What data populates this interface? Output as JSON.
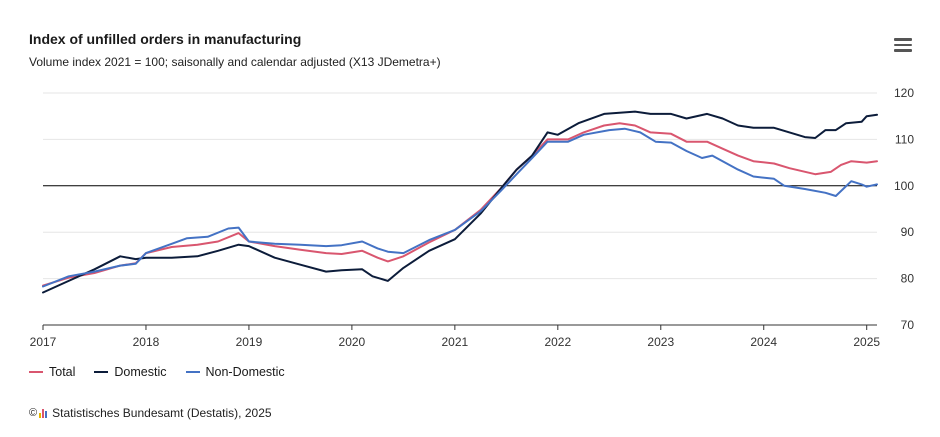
{
  "chart_title": "Index of unfilled orders in manufacturing",
  "chart_subtitle": "Volume index 2021 = 100; saisonally and calendar adjusted (X13 JDemetra+)",
  "credits": "Statistisches Bundesamt (Destatis), 2025",
  "credits_symbol": "©",
  "menu_icon": "hamburger-menu-icon",
  "colors": {
    "total": "#d9566f",
    "domestic": "#0c1c3a",
    "non_domestic": "#4472c4",
    "grid": "#e6e6e6",
    "reference": "#000000",
    "logo": [
      "#e6b800",
      "#d9566f",
      "#4472c4"
    ]
  },
  "chart_data": {
    "type": "line",
    "title": "Index of unfilled orders in manufacturing",
    "ylabel": "Volume index 2021 = 100",
    "ylim": [
      70,
      120
    ],
    "y_ticks": [
      70,
      80,
      90,
      100,
      110,
      120
    ],
    "x_range": [
      2017,
      2025.1
    ],
    "x_ticks": [
      "2017",
      "2018",
      "2019",
      "2020",
      "2021",
      "2022",
      "2023",
      "2024",
      "2025"
    ],
    "reference_line": 100,
    "legend_position": "bottom-left",
    "series": [
      {
        "name": "Total",
        "key": "total",
        "points": [
          [
            2017.0,
            78.5
          ],
          [
            2017.25,
            80.2
          ],
          [
            2017.5,
            81.2
          ],
          [
            2017.75,
            82.8
          ],
          [
            2017.9,
            83.3
          ],
          [
            2018.0,
            85.5
          ],
          [
            2018.25,
            86.8
          ],
          [
            2018.5,
            87.3
          ],
          [
            2018.7,
            88.0
          ],
          [
            2018.9,
            89.8
          ],
          [
            2019.0,
            88.0
          ],
          [
            2019.25,
            87.0
          ],
          [
            2019.5,
            86.2
          ],
          [
            2019.75,
            85.5
          ],
          [
            2019.9,
            85.3
          ],
          [
            2020.1,
            86.0
          ],
          [
            2020.25,
            84.5
          ],
          [
            2020.35,
            83.7
          ],
          [
            2020.5,
            84.8
          ],
          [
            2020.75,
            87.8
          ],
          [
            2021.0,
            90.5
          ],
          [
            2021.25,
            94.8
          ],
          [
            2021.45,
            99.5
          ],
          [
            2021.6,
            103.5
          ],
          [
            2021.75,
            106.5
          ],
          [
            2021.9,
            110.0
          ],
          [
            2022.1,
            110.0
          ],
          [
            2022.25,
            111.5
          ],
          [
            2022.45,
            113.0
          ],
          [
            2022.6,
            113.5
          ],
          [
            2022.75,
            113.0
          ],
          [
            2022.9,
            111.5
          ],
          [
            2023.1,
            111.2
          ],
          [
            2023.25,
            109.5
          ],
          [
            2023.45,
            109.5
          ],
          [
            2023.6,
            108.0
          ],
          [
            2023.75,
            106.5
          ],
          [
            2023.9,
            105.3
          ],
          [
            2024.1,
            104.8
          ],
          [
            2024.25,
            103.8
          ],
          [
            2024.5,
            102.5
          ],
          [
            2024.65,
            103.0
          ],
          [
            2024.75,
            104.5
          ],
          [
            2024.85,
            105.3
          ],
          [
            2025.0,
            105.0
          ],
          [
            2025.1,
            105.3
          ]
        ]
      },
      {
        "name": "Domestic",
        "key": "domestic",
        "points": [
          [
            2017.0,
            77.0
          ],
          [
            2017.25,
            79.5
          ],
          [
            2017.5,
            82.0
          ],
          [
            2017.75,
            84.8
          ],
          [
            2017.9,
            84.2
          ],
          [
            2018.0,
            84.5
          ],
          [
            2018.25,
            84.5
          ],
          [
            2018.5,
            84.8
          ],
          [
            2018.7,
            86.0
          ],
          [
            2018.9,
            87.3
          ],
          [
            2019.0,
            87.0
          ],
          [
            2019.25,
            84.5
          ],
          [
            2019.5,
            83.0
          ],
          [
            2019.75,
            81.5
          ],
          [
            2019.9,
            81.8
          ],
          [
            2020.1,
            82.0
          ],
          [
            2020.2,
            80.5
          ],
          [
            2020.35,
            79.5
          ],
          [
            2020.5,
            82.3
          ],
          [
            2020.75,
            86.0
          ],
          [
            2021.0,
            88.5
          ],
          [
            2021.25,
            94.0
          ],
          [
            2021.45,
            99.5
          ],
          [
            2021.6,
            103.5
          ],
          [
            2021.75,
            106.5
          ],
          [
            2021.9,
            111.5
          ],
          [
            2022.0,
            111.0
          ],
          [
            2022.2,
            113.5
          ],
          [
            2022.45,
            115.5
          ],
          [
            2022.75,
            116.0
          ],
          [
            2022.9,
            115.5
          ],
          [
            2023.1,
            115.5
          ],
          [
            2023.25,
            114.5
          ],
          [
            2023.45,
            115.5
          ],
          [
            2023.6,
            114.5
          ],
          [
            2023.75,
            113.0
          ],
          [
            2023.9,
            112.5
          ],
          [
            2024.1,
            112.5
          ],
          [
            2024.25,
            111.5
          ],
          [
            2024.4,
            110.5
          ],
          [
            2024.5,
            110.3
          ],
          [
            2024.6,
            112.0
          ],
          [
            2024.7,
            112.0
          ],
          [
            2024.8,
            113.5
          ],
          [
            2024.95,
            113.8
          ],
          [
            2025.0,
            115.0
          ],
          [
            2025.1,
            115.3
          ]
        ]
      },
      {
        "name": "Non-Domestic",
        "key": "non_domestic",
        "points": [
          [
            2017.0,
            78.3
          ],
          [
            2017.25,
            80.5
          ],
          [
            2017.5,
            81.5
          ],
          [
            2017.75,
            82.8
          ],
          [
            2017.9,
            83.2
          ],
          [
            2018.0,
            85.5
          ],
          [
            2018.25,
            87.5
          ],
          [
            2018.4,
            88.7
          ],
          [
            2018.6,
            89.0
          ],
          [
            2018.8,
            90.8
          ],
          [
            2018.9,
            91.0
          ],
          [
            2019.0,
            88.0
          ],
          [
            2019.25,
            87.5
          ],
          [
            2019.5,
            87.3
          ],
          [
            2019.75,
            87.0
          ],
          [
            2019.9,
            87.2
          ],
          [
            2020.1,
            88.0
          ],
          [
            2020.25,
            86.5
          ],
          [
            2020.35,
            85.8
          ],
          [
            2020.5,
            85.5
          ],
          [
            2020.75,
            88.3
          ],
          [
            2021.0,
            90.5
          ],
          [
            2021.25,
            94.5
          ],
          [
            2021.45,
            99.0
          ],
          [
            2021.6,
            102.5
          ],
          [
            2021.75,
            106.0
          ],
          [
            2021.9,
            109.5
          ],
          [
            2022.1,
            109.5
          ],
          [
            2022.25,
            111.0
          ],
          [
            2022.5,
            112.0
          ],
          [
            2022.65,
            112.3
          ],
          [
            2022.8,
            111.5
          ],
          [
            2022.95,
            109.5
          ],
          [
            2023.1,
            109.3
          ],
          [
            2023.25,
            107.5
          ],
          [
            2023.4,
            106.0
          ],
          [
            2023.5,
            106.5
          ],
          [
            2023.75,
            103.5
          ],
          [
            2023.9,
            102.0
          ],
          [
            2024.1,
            101.5
          ],
          [
            2024.2,
            100.0
          ],
          [
            2024.4,
            99.3
          ],
          [
            2024.6,
            98.5
          ],
          [
            2024.7,
            97.8
          ],
          [
            2024.85,
            101.0
          ],
          [
            2024.95,
            100.3
          ],
          [
            2025.0,
            99.8
          ],
          [
            2025.1,
            100.3
          ]
        ]
      }
    ]
  }
}
